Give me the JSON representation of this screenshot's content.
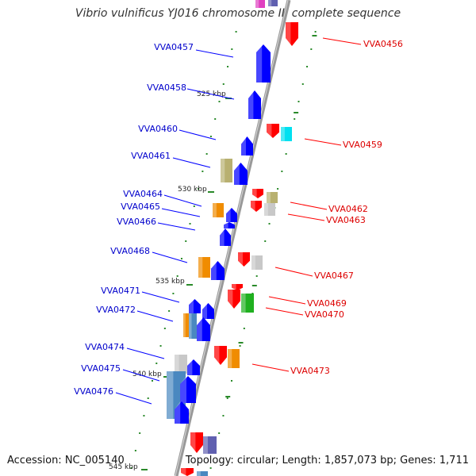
{
  "title": "Vibrio vulnificus YJ016 chromosome II, complete sequence",
  "accession_text": "Accession: NC_005140",
  "topology_text": "Topology: circular; Length: 1,857,073 bp; Genes: 1,711",
  "scale_labels": [
    "525 kbp",
    "530 kbp",
    "535 kbp",
    "540 kbp",
    "545 kbp"
  ],
  "colors": {
    "forward_strand": "#0000ff",
    "reverse_strand": "#ff0000",
    "forward_label": "#0000cc",
    "reverse_label": "#dd0000",
    "backbone": "#999999",
    "tick": "#2a8a2a",
    "cog_olive": "#b8b070",
    "cog_orange": "#f08c00",
    "cog_gray": "#c8c8c8",
    "cog_cyan": "#00e0f0",
    "cog_green": "#20b020",
    "cog_steelblue": "#4a88c0",
    "cog_magenta": "#e040c0",
    "cog_purple": "#6060b0"
  },
  "genes": {
    "forward": [
      "VVA0457",
      "VVA0458",
      "VVA0460",
      "VVA0461",
      "VVA0464",
      "VVA0465",
      "VVA0466",
      "VVA0468",
      "VVA0471",
      "VVA0472",
      "VVA0474",
      "VVA0475",
      "VVA0476"
    ],
    "reverse": [
      "VVA0456",
      "VVA0459",
      "VVA0462",
      "VVA0463",
      "VVA0467",
      "VVA0469",
      "VVA0470",
      "VVA0473"
    ]
  }
}
